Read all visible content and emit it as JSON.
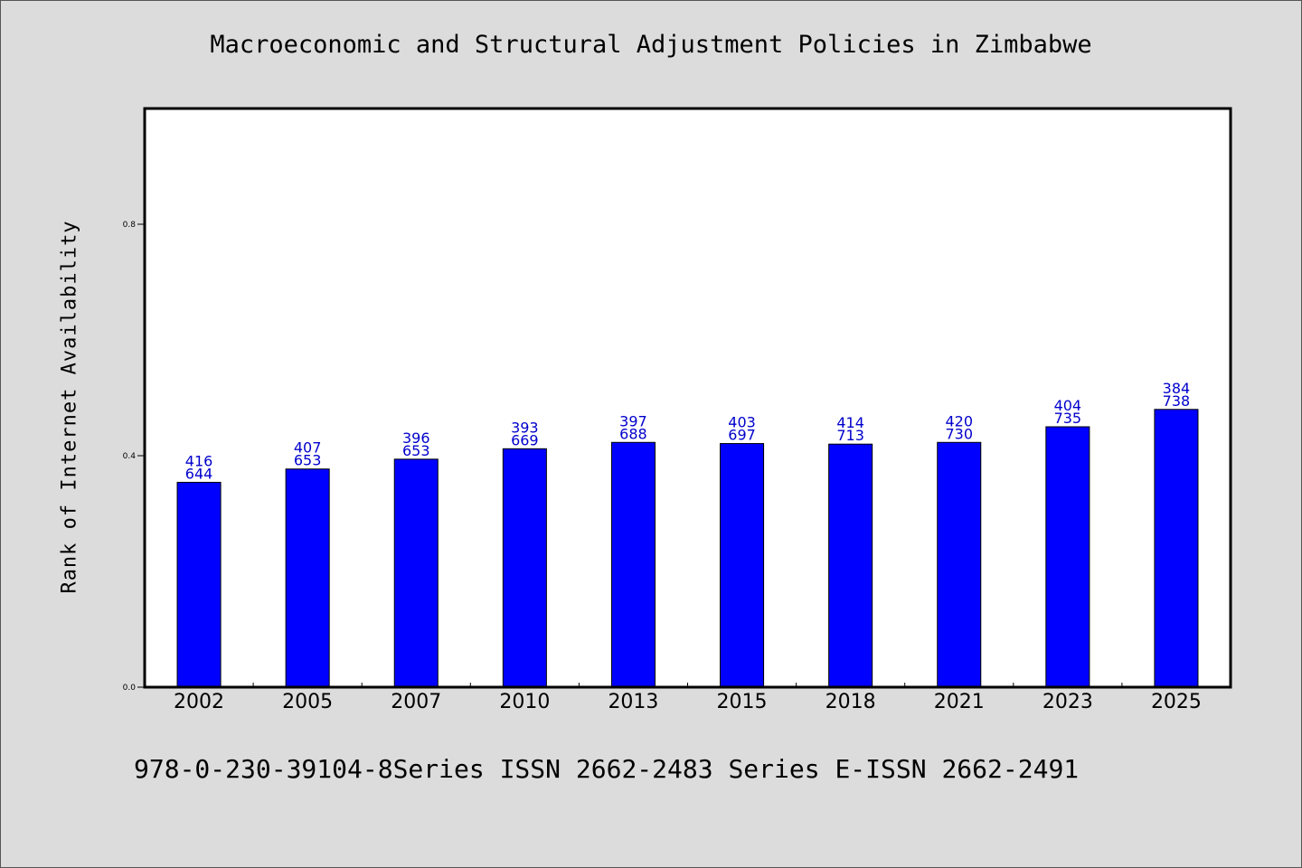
{
  "chart_data": {
    "type": "bar",
    "title": "Macroeconomic and Structural Adjustment Policies in Zimbabwe",
    "xlabel": "",
    "ylabel": "Rank of Internet Availability",
    "categories": [
      "2002",
      "2005",
      "2007",
      "2010",
      "2013",
      "2015",
      "2018",
      "2021",
      "2023",
      "2025"
    ],
    "values": [
      0.354,
      0.377,
      0.394,
      0.412,
      0.423,
      0.421,
      0.42,
      0.423,
      0.45,
      0.48
    ],
    "label_top": [
      "416",
      "407",
      "396",
      "393",
      "397",
      "403",
      "414",
      "420",
      "404",
      "384"
    ],
    "label_bottom": [
      "644",
      "653",
      "653",
      "669",
      "688",
      "697",
      "713",
      "730",
      "735",
      "738"
    ],
    "ylim": [
      0.0,
      1.0
    ],
    "yticks": [
      0.0,
      0.4,
      0.8
    ],
    "ytick_labels": [
      "0.0",
      "0.4",
      "0.8"
    ],
    "grid": false,
    "legend": "none",
    "colors": {
      "bar": "#0000ff",
      "value_label": "#0000cc",
      "background": "#dcdcdc",
      "plot_area": "#ffffff"
    }
  },
  "footnote": "978-0-230-39104-8Series ISSN 2662-2483 Series E-ISSN 2662-2491"
}
